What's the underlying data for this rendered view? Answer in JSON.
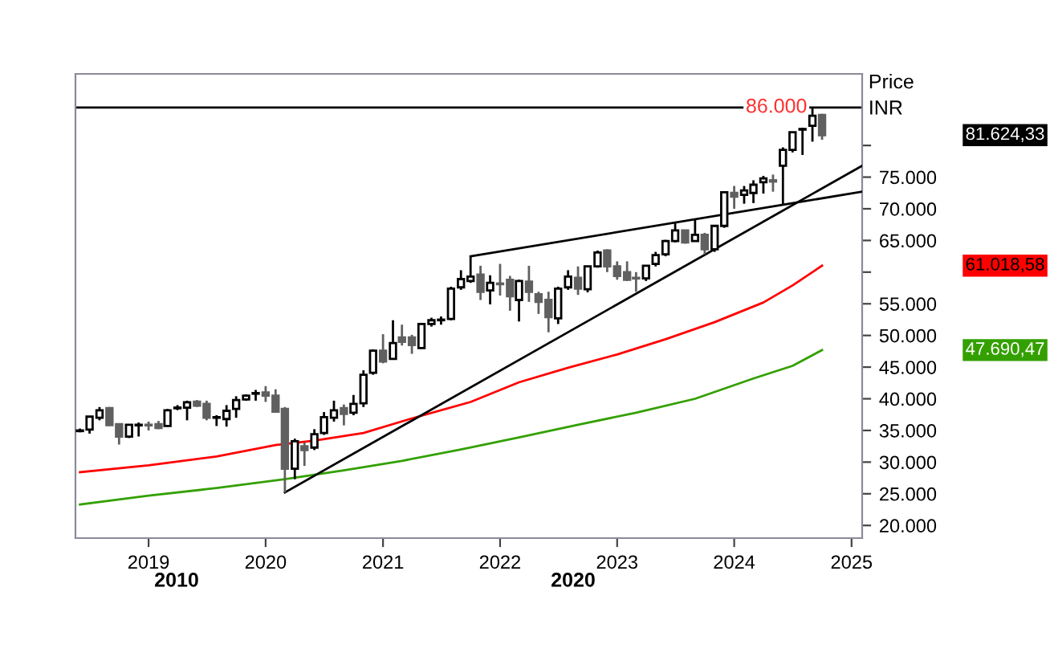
{
  "chart_data": {
    "type": "candlestick",
    "ylabel": "Price\nINR",
    "x": [
      "2018-06",
      "2018-07",
      "2018-08",
      "2018-09",
      "2018-10",
      "2018-11",
      "2018-12",
      "2019-01",
      "2019-02",
      "2019-03",
      "2019-04",
      "2019-05",
      "2019-06",
      "2019-07",
      "2019-08",
      "2019-09",
      "2019-10",
      "2019-11",
      "2019-12",
      "2020-01",
      "2020-02",
      "2020-03",
      "2020-04",
      "2020-05",
      "2020-06",
      "2020-07",
      "2020-08",
      "2020-09",
      "2020-10",
      "2020-11",
      "2020-12",
      "2021-01",
      "2021-02",
      "2021-03",
      "2021-04",
      "2021-05",
      "2021-06",
      "2021-07",
      "2021-08",
      "2021-09",
      "2021-10",
      "2021-11",
      "2021-12",
      "2022-01",
      "2022-02",
      "2022-03",
      "2022-04",
      "2022-05",
      "2022-06",
      "2022-07",
      "2022-08",
      "2022-09",
      "2022-10",
      "2022-11",
      "2022-12",
      "2023-01",
      "2023-02",
      "2023-03",
      "2023-04",
      "2023-05",
      "2023-06",
      "2023-07",
      "2023-08",
      "2023-09",
      "2023-10",
      "2023-11",
      "2023-12",
      "2024-01",
      "2024-02",
      "2024-03",
      "2024-04",
      "2024-05",
      "2024-06",
      "2024-07",
      "2024-08",
      "2024-09",
      "2024-10"
    ],
    "ohlc": [
      [
        34900,
        35300,
        34700,
        35000
      ],
      [
        35150,
        37200,
        34500,
        37180
      ],
      [
        37000,
        38700,
        36600,
        38190
      ],
      [
        38530,
        38700,
        35800,
        35820
      ],
      [
        36000,
        36100,
        32770,
        34040
      ],
      [
        34040,
        36000,
        33800,
        35900
      ],
      [
        35800,
        36250,
        34040,
        35900
      ],
      [
        35900,
        36400,
        35000,
        35800
      ],
      [
        36000,
        36500,
        35200,
        35400
      ],
      [
        35700,
        38400,
        35600,
        38190
      ],
      [
        38500,
        39000,
        38200,
        38610
      ],
      [
        38600,
        39700,
        36600,
        39460
      ],
      [
        39550,
        39800,
        38700,
        38900
      ],
      [
        39200,
        39700,
        36600,
        37000
      ],
      [
        37000,
        37400,
        35700,
        37100
      ],
      [
        36800,
        39000,
        35600,
        38100
      ],
      [
        38400,
        40400,
        37000,
        39800
      ],
      [
        39900,
        40700,
        39700,
        40500
      ],
      [
        40800,
        41400,
        39700,
        40900
      ],
      [
        41000,
        42000,
        39500,
        40500
      ],
      [
        40500,
        41500,
        37900,
        37960
      ],
      [
        38400,
        38700,
        25200,
        28940
      ],
      [
        28960,
        33700,
        27300,
        33300
      ],
      [
        32500,
        33100,
        29400,
        31900
      ],
      [
        32300,
        35200,
        31900,
        34400
      ],
      [
        34600,
        37900,
        34300,
        37100
      ],
      [
        37000,
        39700,
        36400,
        38190
      ],
      [
        38530,
        39100,
        35800,
        37600
      ],
      [
        37800,
        40600,
        37400,
        39200
      ],
      [
        39300,
        44500,
        38700,
        43800
      ],
      [
        44100,
        47800,
        43800,
        47600
      ],
      [
        47600,
        50200,
        45600,
        45900
      ],
      [
        46300,
        52400,
        46300,
        48800
      ],
      [
        49700,
        51700,
        48400,
        49000
      ],
      [
        49700,
        50100,
        47100,
        48500
      ],
      [
        48000,
        51900,
        47900,
        51800
      ],
      [
        51800,
        52800,
        51400,
        52400
      ],
      [
        52400,
        53000,
        51700,
        52500
      ],
      [
        52600,
        57700,
        52400,
        57400
      ],
      [
        57600,
        60300,
        57200,
        58900
      ],
      [
        58600,
        62500,
        58300,
        59300
      ],
      [
        59600,
        61000,
        55600,
        56900
      ],
      [
        57100,
        59500,
        54900,
        58300
      ],
      [
        58200,
        61300,
        56300,
        58100
      ],
      [
        58800,
        59400,
        53900,
        56200
      ],
      [
        55600,
        58800,
        52200,
        58600
      ],
      [
        58500,
        61000,
        55300,
        56900
      ],
      [
        56500,
        56900,
        53400,
        55300
      ],
      [
        55600,
        56900,
        50500,
        52900
      ],
      [
        52700,
        57700,
        51800,
        57400
      ],
      [
        57600,
        60300,
        57200,
        59300
      ],
      [
        59100,
        60900,
        56400,
        57400
      ],
      [
        57300,
        61000,
        56800,
        60900
      ],
      [
        60900,
        63400,
        60700,
        63100
      ],
      [
        63400,
        63600,
        60000,
        60900
      ],
      [
        60900,
        61700,
        58800,
        59400
      ],
      [
        60000,
        61700,
        58600,
        58800
      ],
      [
        59100,
        60000,
        56900,
        59000
      ],
      [
        59000,
        61100,
        58600,
        61000
      ],
      [
        61300,
        63200,
        60900,
        62700
      ],
      [
        62800,
        65100,
        62500,
        64900
      ],
      [
        64900,
        67700,
        64700,
        66600
      ],
      [
        66600,
        66700,
        64500,
        64700
      ],
      [
        64900,
        68300,
        64900,
        65900
      ],
      [
        65900,
        66200,
        62800,
        63600
      ],
      [
        63600,
        67300,
        63200,
        67300
      ],
      [
        67300,
        72600,
        67000,
        72600
      ],
      [
        72500,
        73600,
        70000,
        71900
      ],
      [
        72200,
        73600,
        70800,
        72900
      ],
      [
        72500,
        74500,
        70900,
        73800
      ],
      [
        74200,
        75200,
        72400,
        74800
      ],
      [
        74500,
        75400,
        72700,
        74300
      ],
      [
        76800,
        79700,
        70700,
        79300
      ],
      [
        79300,
        82100,
        78900,
        82100
      ],
      [
        82500,
        82800,
        78500,
        82600
      ],
      [
        83100,
        86000,
        80600,
        84700
      ],
      [
        84800,
        85000,
        80900,
        81624.33
      ]
    ],
    "series": [
      {
        "type": "line",
        "color": "#ff0000",
        "x": [
          "2018-06",
          "2019-01",
          "2019-08",
          "2020-02",
          "2020-06",
          "2020-11",
          "2021-04",
          "2021-10",
          "2022-03",
          "2022-08",
          "2023-01",
          "2023-06",
          "2023-11",
          "2024-04",
          "2024-07",
          "2024-10"
        ],
        "values": [
          28400,
          29500,
          30900,
          32700,
          33400,
          34600,
          36900,
          39500,
          42600,
          44900,
          47000,
          49400,
          52100,
          55200,
          57900,
          61018.58
        ]
      },
      {
        "type": "line",
        "color": "#33a000",
        "x": [
          "2018-06",
          "2019-01",
          "2019-08",
          "2020-03",
          "2020-09",
          "2021-03",
          "2021-09",
          "2022-03",
          "2022-09",
          "2023-03",
          "2023-09",
          "2024-03",
          "2024-07",
          "2024-10"
        ],
        "values": [
          23300,
          24700,
          25900,
          27300,
          28700,
          30200,
          32000,
          33900,
          35900,
          37800,
          40000,
          43200,
          45200,
          47690.47
        ]
      },
      {
        "type": "line",
        "color": "#000000",
        "x": [
          "2020-03",
          "2025-02-03"
        ],
        "values": [
          25200,
          76800
        ]
      },
      {
        "type": "line",
        "color": "#000000",
        "x": [
          "2021-10",
          "2025-02-03"
        ],
        "values": [
          62500,
          72700
        ]
      }
    ],
    "ref_lines": [
      {
        "axis": "y",
        "value": 86000,
        "label": "86.000",
        "color": "#000000"
      }
    ],
    "annotations": [
      "81.624,33",
      "61.018,58",
      "47.690,47",
      "2010",
      "2020"
    ],
    "xlim": [
      "2018-05-18",
      "2025-02-03"
    ],
    "xticks": [
      "2019",
      "2020",
      "2021",
      "2022",
      "2023",
      "2024",
      "2025"
    ],
    "ylim": [
      18000,
      91300
    ],
    "yticks": [
      {
        "value": 20000,
        "label": "20.000"
      },
      {
        "value": 25000,
        "label": "25.000"
      },
      {
        "value": 30000,
        "label": "30.000"
      },
      {
        "value": 35000,
        "label": "35.000"
      },
      {
        "value": 40000,
        "label": "40.000"
      },
      {
        "value": 45000,
        "label": "45.000"
      },
      {
        "value": 50000,
        "label": "50.000"
      },
      {
        "value": 55000,
        "label": "55.000"
      },
      {
        "value": 60000,
        "label": null
      },
      {
        "value": 65000,
        "label": "65.000"
      },
      {
        "value": 70000,
        "label": "70.000"
      },
      {
        "value": 75000,
        "label": "75.000"
      },
      {
        "value": 80000,
        "label": null
      }
    ],
    "grid": false,
    "legend": false
  }
}
